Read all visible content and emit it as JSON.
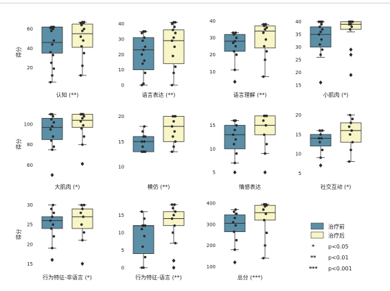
{
  "legend": {
    "items": [
      {
        "label": "治疗前",
        "color": "#5b8fa8"
      },
      {
        "label": "治疗后",
        "color": "#f8f5c6"
      }
    ],
    "sig": [
      {
        "marker": "*",
        "text": "p<0.05"
      },
      {
        "marker": "**",
        "text": "p<0.01"
      },
      {
        "marker": "***",
        "text": "p<0.001"
      }
    ]
  },
  "colors": {
    "before": "#5b8fa8",
    "after": "#f8f5c6",
    "stroke": "#333333",
    "point": "#2a2a2a"
  },
  "chart_data": [
    {
      "type": "box",
      "title": "认知 (**)",
      "ylabel": "得分",
      "ylim": [
        2,
        70
      ],
      "yticks": [
        20,
        40,
        60
      ],
      "series": [
        {
          "name": "治疗前",
          "min": 5,
          "q1": 35,
          "median": 46,
          "q3": 62,
          "max": 62,
          "points": [
            5,
            12,
            19,
            25,
            33,
            36,
            44,
            48,
            58,
            60,
            61,
            61,
            62,
            62,
            62
          ]
        },
        {
          "name": "治疗后",
          "min": 12,
          "q1": 41,
          "median": 55,
          "q3": 65,
          "max": 67,
          "points": [
            12,
            22,
            35,
            42,
            48,
            52,
            58,
            60,
            64,
            66,
            66,
            67,
            67
          ]
        }
      ]
    },
    {
      "type": "box",
      "title": "语言表达 (**)",
      "ylabel": "",
      "ylim": [
        0,
        43
      ],
      "yticks": [
        0,
        10,
        20,
        30,
        40
      ],
      "series": [
        {
          "name": "治疗前",
          "min": 0,
          "q1": 10,
          "median": 23,
          "q3": 31,
          "max": 35,
          "points": [
            0,
            1,
            8,
            14,
            16,
            20,
            23,
            25,
            29,
            31,
            34,
            35,
            35
          ]
        },
        {
          "name": "治疗后",
          "min": 0,
          "q1": 14,
          "median": 29,
          "q3": 36,
          "max": 41,
          "points": [
            0,
            8,
            12,
            19,
            25,
            29,
            31,
            34,
            36,
            38,
            40,
            41,
            41
          ]
        }
      ]
    },
    {
      "type": "box",
      "title": "语言理解 (**)",
      "ylabel": "",
      "ylim": [
        2,
        41
      ],
      "yticks": [
        10,
        20,
        30,
        40
      ],
      "series": [
        {
          "name": "治疗前",
          "min": 11,
          "q1": 22,
          "median": 28,
          "q3": 32,
          "max": 33,
          "points": [
            4,
            11,
            20,
            22,
            25,
            27,
            28,
            30,
            32,
            33,
            33
          ]
        },
        {
          "name": "治疗后",
          "min": 7,
          "q1": 24,
          "median": 34,
          "q3": 37,
          "max": 38,
          "points": [
            7,
            17,
            22,
            25,
            29,
            33,
            35,
            36,
            37,
            38,
            38,
            38
          ]
        }
      ]
    },
    {
      "type": "box",
      "title": "小肌肉 (*)",
      "ylabel": "",
      "ylim": [
        15,
        41
      ],
      "yticks": [
        15,
        20,
        25,
        30,
        35,
        40
      ],
      "series": [
        {
          "name": "治疗前",
          "min": 26,
          "q1": 30,
          "median": 35,
          "q3": 38,
          "max": 40,
          "points": [
            16,
            27,
            29,
            31,
            33,
            35,
            36,
            37,
            38,
            39,
            40,
            40,
            40
          ]
        },
        {
          "name": "治疗后",
          "min": 36,
          "q1": 37,
          "median": 39,
          "q3": 40,
          "max": 40,
          "points": [
            19,
            27,
            29,
            37,
            38,
            39,
            39,
            40,
            40,
            40,
            40,
            40
          ]
        }
      ]
    },
    {
      "type": "box",
      "title": "大肌肉 (*)",
      "ylabel": "得分",
      "ylim": [
        48,
        113
      ],
      "yticks": [
        60,
        80,
        100
      ],
      "series": [
        {
          "name": "治疗前",
          "min": 75,
          "q1": 85,
          "median": 97,
          "q3": 106,
          "max": 110,
          "points": [
            50,
            75,
            78,
            84,
            88,
            95,
            98,
            102,
            105,
            108,
            110,
            110
          ]
        },
        {
          "name": "治疗后",
          "min": 80,
          "q1": 97,
          "median": 104,
          "q3": 110,
          "max": 110,
          "points": [
            61,
            80,
            88,
            96,
            99,
            103,
            106,
            108,
            110,
            110,
            110,
            110
          ]
        }
      ]
    },
    {
      "type": "box",
      "title": "模仿 (**)",
      "ylabel": "",
      "ylim": [
        8,
        21
      ],
      "yticks": [
        10,
        15,
        20
      ],
      "series": [
        {
          "name": "治疗前",
          "min": 13,
          "q1": 13,
          "median": 15,
          "q3": 16,
          "max": 18,
          "points": [
            13,
            13,
            13,
            14,
            15,
            15,
            16,
            16,
            17,
            18
          ]
        },
        {
          "name": "治疗后",
          "min": 13,
          "q1": 15,
          "median": 18,
          "q3": 20,
          "max": 20,
          "points": [
            13,
            14,
            15,
            16,
            17,
            18,
            19,
            20,
            20,
            20
          ]
        }
      ]
    },
    {
      "type": "box",
      "title": "情感表达",
      "ylabel": "",
      "ylim": [
        4,
        18
      ],
      "yticks": [
        5,
        10,
        15
      ],
      "series": [
        {
          "name": "治疗前",
          "min": 7,
          "q1": 10,
          "median": 13,
          "q3": 15,
          "max": 16,
          "points": [
            5,
            7,
            9,
            11,
            12,
            13,
            14,
            15,
            16,
            16
          ]
        },
        {
          "name": "治疗后",
          "min": 9,
          "q1": 13,
          "median": 15,
          "q3": 17,
          "max": 17,
          "points": [
            5,
            9,
            11,
            13,
            15,
            16,
            17,
            17,
            17
          ]
        }
      ]
    },
    {
      "type": "box",
      "title": "社交互动 (*)",
      "ylabel": "",
      "ylim": [
        4,
        21
      ],
      "yticks": [
        5,
        10,
        15,
        20
      ],
      "series": [
        {
          "name": "治疗前",
          "min": 9,
          "q1": 12,
          "median": 14,
          "q3": 15,
          "max": 16,
          "points": [
            7,
            9,
            11,
            13,
            14,
            14,
            15,
            16,
            16
          ]
        },
        {
          "name": "治疗后",
          "min": 8,
          "q1": 13,
          "median": 16,
          "q3": 18,
          "max": 20,
          "points": [
            8,
            11,
            13,
            15,
            16,
            17,
            18,
            19,
            20
          ]
        }
      ]
    },
    {
      "type": "box",
      "title": "行为特征-非语言 (*)",
      "ylabel": "得分",
      "ylim": [
        14,
        31
      ],
      "yticks": [
        15,
        20,
        25,
        30
      ],
      "series": [
        {
          "name": "治疗前",
          "min": 19,
          "q1": 24,
          "median": 26,
          "q3": 27,
          "max": 30,
          "points": [
            16,
            19,
            22,
            24,
            25,
            26,
            27,
            28,
            29,
            30
          ]
        },
        {
          "name": "治疗后",
          "min": 21,
          "q1": 24,
          "median": 27,
          "q3": 29,
          "max": 30,
          "points": [
            15,
            21,
            23,
            25,
            27,
            28,
            29,
            30,
            30
          ]
        }
      ]
    },
    {
      "type": "box",
      "title": "行为特征-语言 (**)",
      "ylabel": "",
      "ylim": [
        0,
        19
      ],
      "yticks": [
        0,
        5,
        10,
        15
      ],
      "series": [
        {
          "name": "治疗前",
          "min": 0,
          "q1": 4,
          "median": 12,
          "q3": 12,
          "max": 16,
          "points": [
            0,
            0,
            3,
            6,
            9,
            11,
            12,
            12,
            12,
            14,
            16
          ]
        },
        {
          "name": "治疗后",
          "min": 7,
          "q1": 12,
          "median": 14,
          "q3": 16,
          "max": 18,
          "points": [
            0,
            2,
            7,
            10,
            12,
            14,
            15,
            16,
            17,
            18,
            18
          ]
        }
      ]
    },
    {
      "type": "box",
      "title": "总分 (***)",
      "ylabel": "",
      "ylim": [
        95,
        410
      ],
      "yticks": [
        100,
        200,
        300,
        400
      ],
      "series": [
        {
          "name": "治疗前",
          "min": 180,
          "q1": 265,
          "median": 305,
          "q3": 345,
          "max": 370,
          "points": [
            120,
            180,
            225,
            265,
            295,
            310,
            330,
            350,
            360,
            370
          ]
        },
        {
          "name": "治疗后",
          "min": 140,
          "q1": 320,
          "median": 355,
          "q3": 390,
          "max": 395,
          "points": [
            140,
            200,
            260,
            320,
            350,
            370,
            385,
            390,
            395,
            395
          ]
        }
      ]
    }
  ]
}
